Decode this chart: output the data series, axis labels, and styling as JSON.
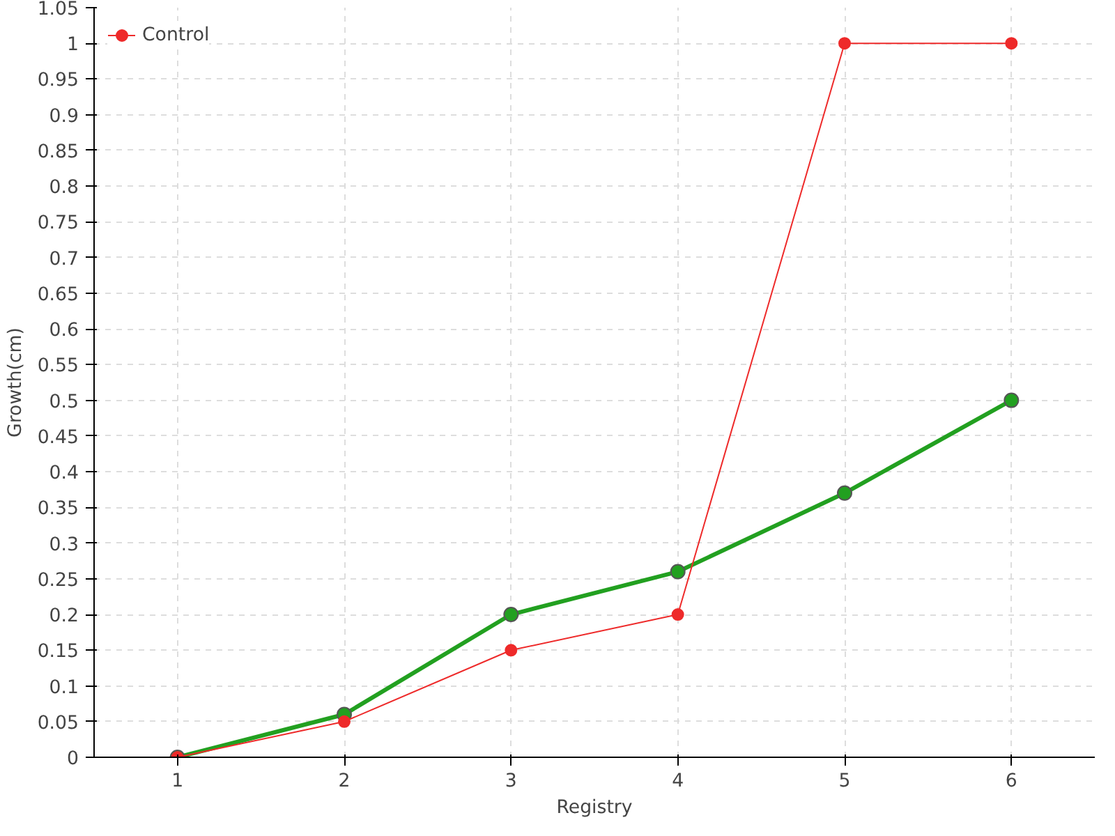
{
  "chart_data": {
    "type": "line",
    "xlabel": "Registry",
    "ylabel": "Growth(cm)",
    "x": [
      1,
      2,
      3,
      4,
      5,
      6
    ],
    "series": [
      {
        "color": "#22a020",
        "values": [
          0,
          0.06,
          0.2,
          0.26,
          0.37,
          0.5
        ]
      },
      {
        "name": "Control",
        "color": "#ee2a2a",
        "values": [
          0,
          0.05,
          0.15,
          0.2,
          1,
          1
        ]
      }
    ],
    "xlim": [
      0.5,
      6.5
    ],
    "xticks": [
      1,
      2,
      3,
      4,
      5,
      6
    ],
    "ylim": [
      0,
      1.05
    ],
    "yticks": [
      0,
      0.05,
      0.1,
      0.15,
      0.2,
      0.25,
      0.3,
      0.35,
      0.4,
      0.45,
      0.5,
      0.55,
      0.6,
      0.65,
      0.7,
      0.75,
      0.8,
      0.85,
      0.9,
      0.95,
      1,
      1.05
    ],
    "grid": true,
    "legend": "top left",
    "marker": "circle",
    "line_style": "solid"
  }
}
